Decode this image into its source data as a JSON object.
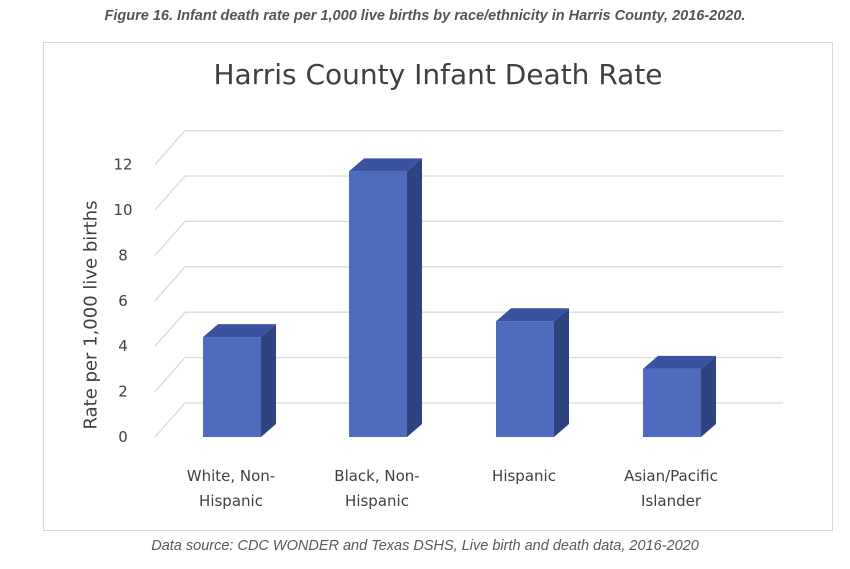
{
  "caption": "Figure 16. Infant death rate per 1,000 live births by race/ethnicity in Harris County, 2016-2020.",
  "source": "Data source: CDC WONDER and Texas DSHS, Live birth and death data, 2016-2020",
  "colors": {
    "bar_front": "#4f6bbd",
    "bar_side": "#2f4380",
    "bar_top": "#3a52a0",
    "grid": "#d9d9d9"
  },
  "chart_data": {
    "type": "bar",
    "title": "Harris County Infant Death Rate",
    "xlabel": "",
    "ylabel": "Rate per 1,000 live births",
    "categories": [
      [
        "White, Non-",
        "Hispanic"
      ],
      [
        "Black, Non-",
        "Hispanic"
      ],
      [
        "Hispanic"
      ],
      [
        "Asian/Pacific",
        "Islander"
      ]
    ],
    "values": [
      4.4,
      11.7,
      5.1,
      3.0
    ],
    "yticks": [
      0,
      2,
      4,
      6,
      8,
      10,
      12
    ],
    "ylim": [
      0,
      12
    ],
    "grid": true,
    "legend": "none"
  }
}
